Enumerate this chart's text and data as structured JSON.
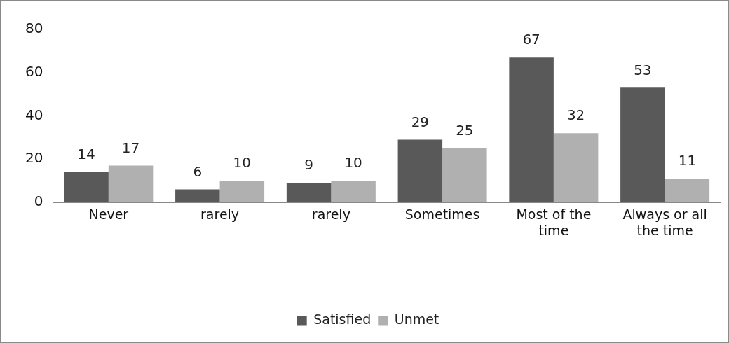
{
  "chart_data": {
    "type": "bar",
    "categories": [
      "Never",
      "rarely",
      "rarely",
      "Sometimes",
      "Most of the time",
      "Always or all the time"
    ],
    "series": [
      {
        "name": "Satisfied",
        "color": "#595959",
        "values": [
          14,
          6,
          9,
          29,
          67,
          53
        ]
      },
      {
        "name": "Unmet",
        "color": "#b0b0b0",
        "values": [
          17,
          10,
          10,
          25,
          32,
          11
        ]
      }
    ],
    "ylim": [
      0,
      80
    ],
    "yticks": [
      0,
      20,
      40,
      60,
      80
    ],
    "grid": false,
    "legend": "bottom",
    "data_labels": true
  }
}
